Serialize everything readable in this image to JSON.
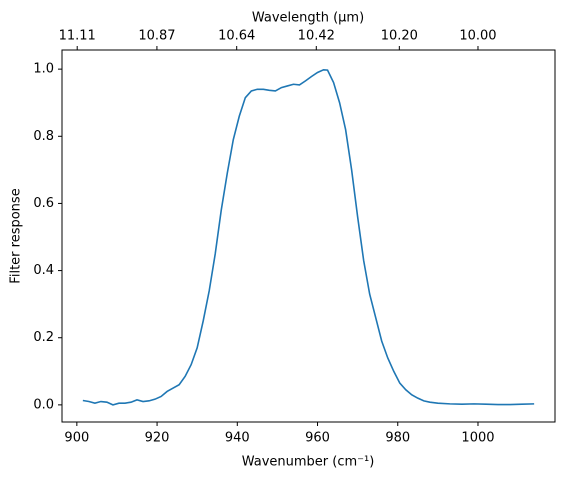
{
  "chart_data": {
    "type": "line",
    "title": "Wavelength (μm)",
    "x_label": "Wavenumber (cm⁻¹)",
    "y_label": "Filter response",
    "color": "#1f77b4",
    "x": [
      901.5,
      903,
      904.5,
      906,
      907.5,
      909,
      910.5,
      912,
      913.5,
      915,
      916.5,
      918,
      919.5,
      921,
      922.5,
      924,
      925.5,
      927,
      928.5,
      930,
      931.5,
      933,
      934.5,
      936,
      937.5,
      939,
      940.5,
      942,
      943.5,
      945,
      946.5,
      948,
      949.5,
      951,
      952.5,
      954,
      955.5,
      957,
      958.5,
      960,
      961.5,
      962.5,
      964,
      965.5,
      967,
      968.5,
      970,
      971.5,
      973,
      974.5,
      976,
      977.5,
      979,
      980.5,
      982,
      983.5,
      985,
      986.5,
      988,
      990,
      993,
      996,
      999,
      1002,
      1005,
      1008,
      1011,
      1014
    ],
    "values": [
      0.013,
      0.01,
      0.005,
      0.01,
      0.008,
      0.0,
      0.005,
      0.005,
      0.008,
      0.015,
      0.01,
      0.012,
      0.017,
      0.025,
      0.04,
      0.05,
      0.06,
      0.085,
      0.12,
      0.17,
      0.25,
      0.34,
      0.45,
      0.58,
      0.69,
      0.79,
      0.86,
      0.915,
      0.935,
      0.94,
      0.94,
      0.937,
      0.935,
      0.945,
      0.95,
      0.955,
      0.953,
      0.965,
      0.978,
      0.99,
      0.998,
      0.997,
      0.96,
      0.9,
      0.82,
      0.7,
      0.56,
      0.43,
      0.33,
      0.26,
      0.19,
      0.14,
      0.1,
      0.065,
      0.045,
      0.03,
      0.02,
      0.012,
      0.008,
      0.005,
      0.003,
      0.002,
      0.003,
      0.002,
      0.001,
      0.001,
      0.002,
      0.003
    ],
    "xlim": [
      896.3,
      1019.2
    ],
    "ylim": [
      -0.051,
      1.057
    ],
    "xticks": [
      900,
      920,
      940,
      960,
      980,
      1000
    ],
    "yticks": [
      {
        "value": 0,
        "label": "0.0"
      },
      0.2,
      0.4,
      0.6,
      0.8,
      {
        "value": 1,
        "label": "1.0"
      }
    ],
    "x2ticks": [
      11.11,
      10.87,
      10.64,
      10.42,
      {
        "value": 10.2,
        "label": "10.20"
      },
      {
        "value": 10,
        "label": "10.00"
      }
    ]
  }
}
